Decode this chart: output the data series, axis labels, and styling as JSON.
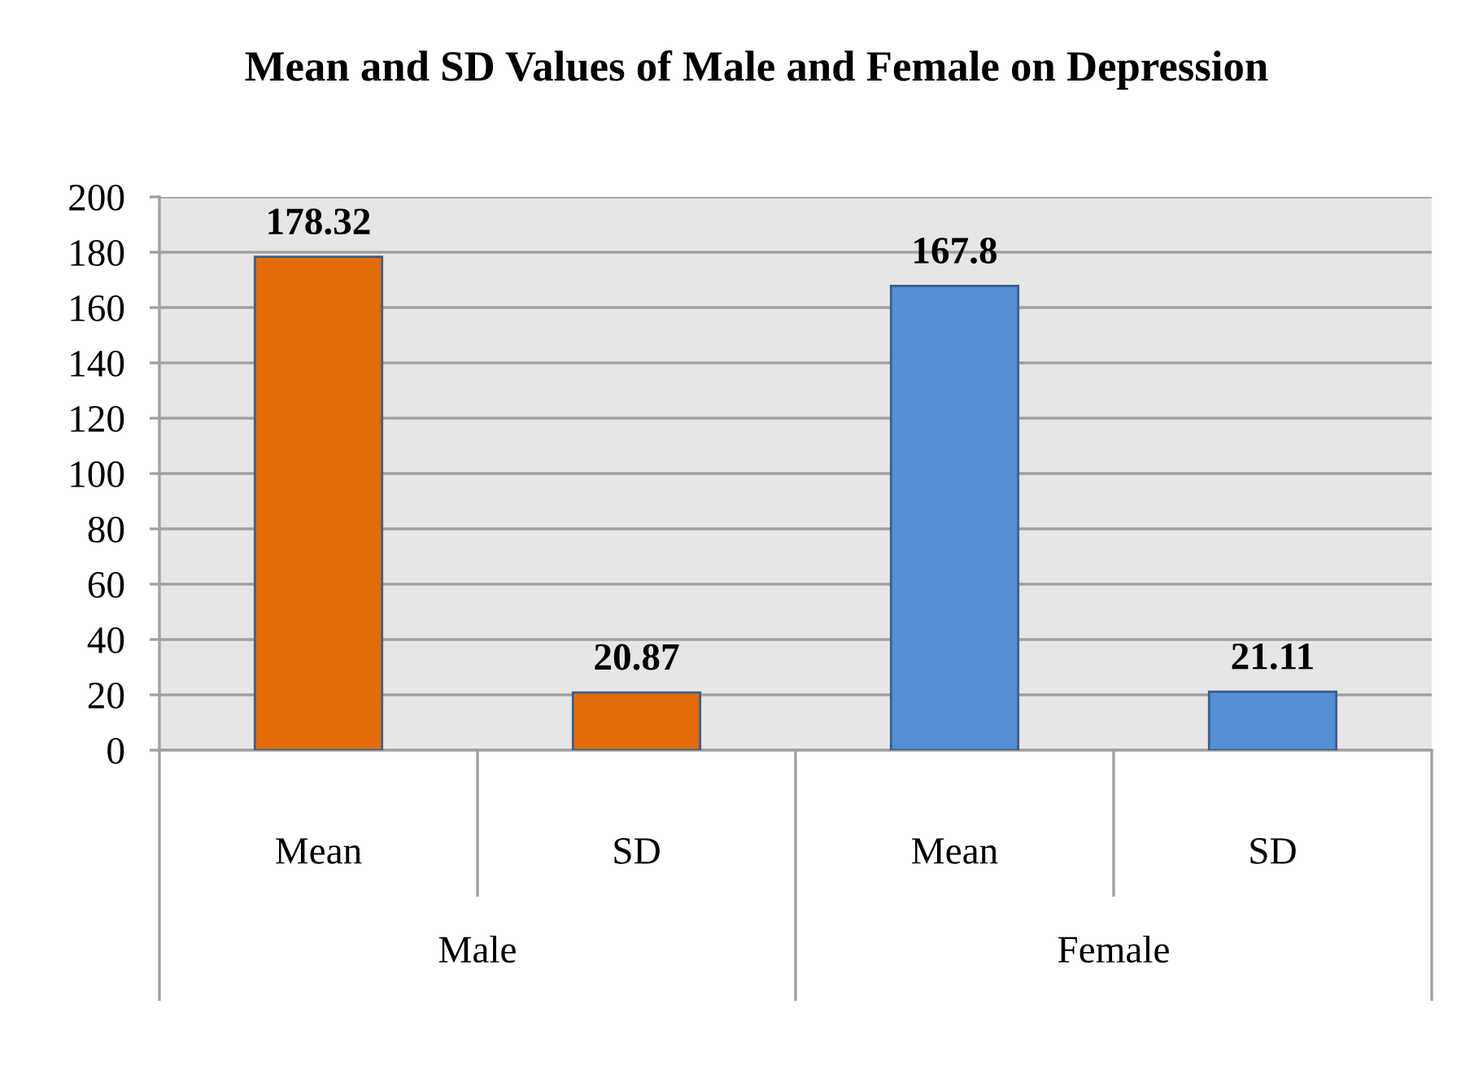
{
  "chart_data": {
    "type": "bar",
    "title": "Mean and SD Values of Male and Female on Depression",
    "categories": [
      "Male",
      "Female"
    ],
    "series": [
      {
        "name": "Mean",
        "colors": [
          "#e36c09",
          "#558ed5"
        ],
        "values": [
          178.32,
          167.8
        ]
      },
      {
        "name": "SD",
        "colors": [
          "#e36c09",
          "#558ed5"
        ],
        "values": [
          20.87,
          21.11
        ]
      }
    ],
    "ylim": [
      0,
      200
    ],
    "yticks": [
      0,
      20,
      40,
      60,
      80,
      100,
      120,
      140,
      160,
      180,
      200
    ],
    "grid": "y",
    "data_labels": true
  }
}
